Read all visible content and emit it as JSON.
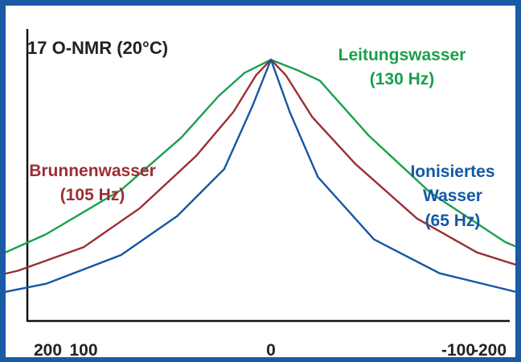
{
  "chart_data": {
    "type": "line",
    "title": "17 O-NMR (20°C)",
    "xlabel": "",
    "ylabel": "",
    "xlim": [
      215,
      -215
    ],
    "ylim": [
      0,
      1.05
    ],
    "x_ticks": [
      "200",
      "100",
      "0",
      "-100",
      "-200"
    ],
    "x_tick_values": [
      200,
      100,
      0,
      -100,
      -200
    ],
    "grid": false,
    "series": [
      {
        "name": "Leitungswasser (130 Hz)",
        "label_lines": [
          "Leitungswasser",
          "(130 Hz)"
        ],
        "color": "#1aa04b",
        "points": [
          [
            214,
            0.12
          ],
          [
            185,
            0.15
          ],
          [
            148,
            0.24
          ],
          [
            120,
            0.33
          ],
          [
            80,
            0.5
          ],
          [
            48,
            0.7
          ],
          [
            28,
            0.86
          ],
          [
            14,
            0.95
          ],
          [
            0,
            1.0
          ],
          [
            -14,
            0.96
          ],
          [
            -26,
            0.92
          ],
          [
            -52,
            0.71
          ],
          [
            -85,
            0.49
          ],
          [
            -125,
            0.3
          ],
          [
            -155,
            0.21
          ],
          [
            -185,
            0.16
          ],
          [
            -215,
            0.12
          ]
        ]
      },
      {
        "name": "Brunnenwasser (105 Hz)",
        "label_lines": [
          "Brunnenwasser",
          "(105 Hz)"
        ],
        "color": "#9c2e33",
        "points": [
          [
            214,
            0.09
          ],
          [
            165,
            0.14
          ],
          [
            135,
            0.19
          ],
          [
            100,
            0.28
          ],
          [
            70,
            0.43
          ],
          [
            40,
            0.63
          ],
          [
            20,
            0.8
          ],
          [
            8,
            0.94
          ],
          [
            0,
            1.0
          ],
          [
            -8,
            0.94
          ],
          [
            -22,
            0.78
          ],
          [
            -45,
            0.6
          ],
          [
            -78,
            0.39
          ],
          [
            -110,
            0.26
          ],
          [
            -145,
            0.18
          ],
          [
            -180,
            0.13
          ],
          [
            -215,
            0.1
          ]
        ]
      },
      {
        "name": "Ionisiertes Wasser (65 Hz)",
        "label_lines": [
          "Ionisiertes",
          "Wasser",
          "(65 Hz)"
        ],
        "color": "#1458a4",
        "points": [
          [
            214,
            0.07
          ],
          [
            155,
            0.09
          ],
          [
            120,
            0.14
          ],
          [
            80,
            0.25
          ],
          [
            50,
            0.4
          ],
          [
            25,
            0.58
          ],
          [
            10,
            0.82
          ],
          [
            0,
            1.0
          ],
          [
            -10,
            0.8
          ],
          [
            -25,
            0.55
          ],
          [
            -55,
            0.31
          ],
          [
            -90,
            0.18
          ],
          [
            -130,
            0.11
          ],
          [
            -175,
            0.08
          ],
          [
            -215,
            0.06
          ]
        ]
      }
    ]
  },
  "colors": {
    "frame": "#1c5aa6",
    "axis": "#111111",
    "background": "#ffffff"
  }
}
